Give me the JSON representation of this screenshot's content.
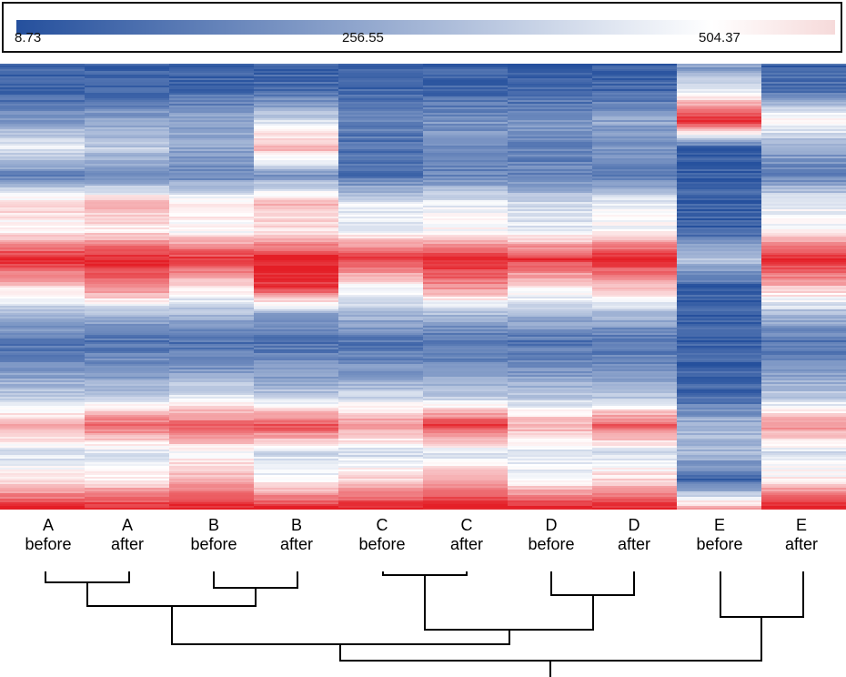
{
  "chart_data": {
    "type": "heatmap",
    "title": "",
    "colorbar": {
      "min": 8.73,
      "mid": 256.55,
      "max": 504.37,
      "tick_labels": [
        "8.73",
        "256.55",
        "504.37"
      ],
      "colors": [
        "#25509d",
        "#ffffff",
        "#e41e26"
      ]
    },
    "columns": [
      {
        "group": "A",
        "condition": "before"
      },
      {
        "group": "A",
        "condition": "after"
      },
      {
        "group": "B",
        "condition": "before"
      },
      {
        "group": "B",
        "condition": "after"
      },
      {
        "group": "C",
        "condition": "before"
      },
      {
        "group": "C",
        "condition": "after"
      },
      {
        "group": "D",
        "condition": "before"
      },
      {
        "group": "D",
        "condition": "after"
      },
      {
        "group": "E",
        "condition": "before"
      },
      {
        "group": "E",
        "condition": "after"
      }
    ],
    "row_profile": [
      [
        0.05,
        0.05,
        0.06,
        0.05,
        0.05,
        0.05,
        0.05,
        0.05,
        0.2,
        0.05
      ],
      [
        0.06,
        0.07,
        0.08,
        0.1,
        0.07,
        0.08,
        0.07,
        0.08,
        0.45,
        0.1
      ],
      [
        0.2,
        0.25,
        0.25,
        0.4,
        0.15,
        0.2,
        0.2,
        0.25,
        1.0,
        0.55
      ],
      [
        0.45,
        0.35,
        0.25,
        0.7,
        0.1,
        0.2,
        0.15,
        0.2,
        0.05,
        0.25
      ],
      [
        0.15,
        0.15,
        0.15,
        0.2,
        0.1,
        0.15,
        0.15,
        0.15,
        0.05,
        0.15
      ],
      [
        0.6,
        0.65,
        0.55,
        0.65,
        0.45,
        0.45,
        0.4,
        0.45,
        0.05,
        0.45
      ],
      [
        0.5,
        0.55,
        0.5,
        0.55,
        0.45,
        0.5,
        0.45,
        0.5,
        0.05,
        0.5
      ],
      [
        1.0,
        1.0,
        0.95,
        1.0,
        0.95,
        1.0,
        0.95,
        1.0,
        0.35,
        1.0
      ],
      [
        0.6,
        0.8,
        0.55,
        0.95,
        0.5,
        0.75,
        0.55,
        0.65,
        0.05,
        0.65
      ],
      [
        0.3,
        0.3,
        0.3,
        0.25,
        0.3,
        0.3,
        0.3,
        0.3,
        0.05,
        0.3
      ],
      [
        0.1,
        0.1,
        0.1,
        0.1,
        0.1,
        0.1,
        0.1,
        0.1,
        0.05,
        0.1
      ],
      [
        0.2,
        0.2,
        0.2,
        0.2,
        0.2,
        0.2,
        0.2,
        0.2,
        0.05,
        0.2
      ],
      [
        0.35,
        0.35,
        0.45,
        0.35,
        0.4,
        0.35,
        0.35,
        0.35,
        0.08,
        0.35
      ],
      [
        0.7,
        0.85,
        0.85,
        0.9,
        0.75,
        0.95,
        0.7,
        0.85,
        0.3,
        0.75
      ],
      [
        0.4,
        0.4,
        0.5,
        0.4,
        0.4,
        0.4,
        0.4,
        0.4,
        0.3,
        0.4
      ],
      [
        0.55,
        0.55,
        0.7,
        0.5,
        0.6,
        0.7,
        0.5,
        0.6,
        0.05,
        0.55
      ],
      [
        1.0,
        1.0,
        1.0,
        1.0,
        1.0,
        1.0,
        1.0,
        1.0,
        0.7,
        1.0
      ]
    ]
  },
  "labels": {
    "col0_group": "A",
    "col0_cond": "before",
    "col1_group": "A",
    "col1_cond": "after",
    "col2_group": "B",
    "col2_cond": "before",
    "col3_group": "B",
    "col3_cond": "after",
    "col4_group": "C",
    "col4_cond": "before",
    "col5_group": "C",
    "col5_cond": "after",
    "col6_group": "D",
    "col6_cond": "before",
    "col7_group": "D",
    "col7_cond": "after",
    "col8_group": "E",
    "col8_cond": "before",
    "col9_group": "E",
    "col9_cond": "after"
  }
}
